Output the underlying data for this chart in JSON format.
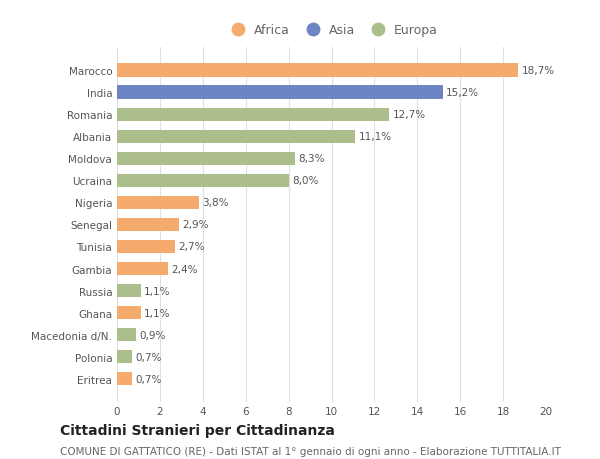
{
  "countries": [
    "Marocco",
    "India",
    "Romania",
    "Albania",
    "Moldova",
    "Ucraina",
    "Nigeria",
    "Senegal",
    "Tunisia",
    "Gambia",
    "Russia",
    "Ghana",
    "Macedonia d/N.",
    "Polonia",
    "Eritrea"
  ],
  "values": [
    18.7,
    15.2,
    12.7,
    11.1,
    8.3,
    8.0,
    3.8,
    2.9,
    2.7,
    2.4,
    1.1,
    1.1,
    0.9,
    0.7,
    0.7
  ],
  "labels": [
    "18,7%",
    "15,2%",
    "12,7%",
    "11,1%",
    "8,3%",
    "8,0%",
    "3,8%",
    "2,9%",
    "2,7%",
    "2,4%",
    "1,1%",
    "1,1%",
    "0,9%",
    "0,7%",
    "0,7%"
  ],
  "continents": [
    "Africa",
    "Asia",
    "Europa",
    "Europa",
    "Europa",
    "Europa",
    "Africa",
    "Africa",
    "Africa",
    "Africa",
    "Europa",
    "Africa",
    "Europa",
    "Europa",
    "Africa"
  ],
  "colors": {
    "Africa": "#F5AA6E",
    "Asia": "#6E85C5",
    "Europa": "#ABBE8C"
  },
  "xlim": [
    0,
    20
  ],
  "xticks": [
    0,
    2,
    4,
    6,
    8,
    10,
    12,
    14,
    16,
    18,
    20
  ],
  "title": "Cittadini Stranieri per Cittadinanza",
  "subtitle": "COMUNE DI GATTATICO (RE) - Dati ISTAT al 1° gennaio di ogni anno - Elaborazione TUTTITALIA.IT",
  "background_color": "#ffffff",
  "grid_color": "#e0e0e0",
  "bar_height": 0.6,
  "title_fontsize": 10,
  "subtitle_fontsize": 7.5,
  "label_fontsize": 7.5,
  "tick_fontsize": 7.5,
  "legend_fontsize": 9
}
